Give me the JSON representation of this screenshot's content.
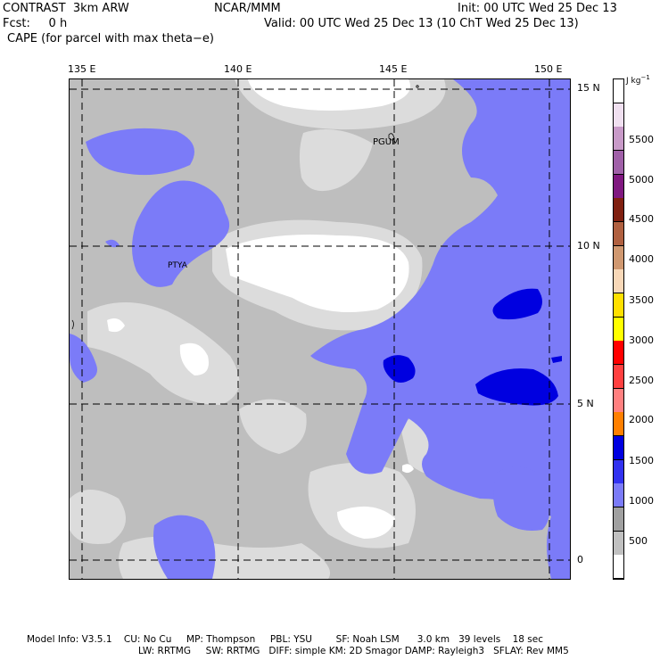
{
  "header": {
    "model": "CONTRAST  3km ARW",
    "center": "NCAR/MMM",
    "init": "Init: 00 UTC Wed 25 Dec 13",
    "fcst": "Fcst:     0 h",
    "valid": "Valid: 00 UTC Wed 25 Dec 13 (10 ChT Wed 25 Dec 13)",
    "field": "CAPE (for parcel with max theta−e)"
  },
  "map": {
    "lon_labels": [
      "135 E",
      "140 E",
      "145 E",
      "150 E"
    ],
    "lat_labels": [
      "15 N",
      "10 N",
      "5 N",
      "0"
    ],
    "stations": [
      "PGUM",
      "PTYA"
    ]
  },
  "colorbar": {
    "unit_text": "J kg",
    "unit_exp": "−1",
    "labels": [
      "5500",
      "5000",
      "4500",
      "4000",
      "3500",
      "3000",
      "2500",
      "2000",
      "1500",
      "1000",
      "500"
    ],
    "colors": [
      "#ffffff",
      "#c0c0c0",
      "#a0a0a0",
      "#7b7bf8",
      "#3232f0",
      "#0000e0",
      "#ff8000",
      "#ff8080",
      "#ff4040",
      "#ff0000",
      "#ffff00",
      "#ffe000",
      "#f8d8b8",
      "#d09870",
      "#b06040",
      "#802010",
      "#801880",
      "#a060a8",
      "#c89ac8",
      "#f0e0f0",
      "#ffffff"
    ]
  },
  "footer": {
    "line1": "Model Info: V3.5.1    CU: No Cu     MP: Thompson     PBL: YSU        SF: Noah LSM      3.0 km   39 levels    18 sec",
    "line2": "LW: RRTMG     SW: RRTMG   DIFF: simple KM: 2D Smagor DAMP: Rayleigh3   SFLAY: Rev MM5"
  },
  "colors": {
    "below_500": "#ffffff",
    "c500_1000": "#dcdcdc",
    "c1000_1500": "#bebebe",
    "c1500_2000": "#7b7bf8",
    "c2000_2500": "#0000e0"
  }
}
